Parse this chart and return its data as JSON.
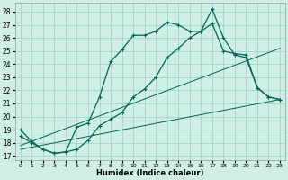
{
  "xlabel": "Humidex (Indice chaleur)",
  "bg_color": "#ceeee6",
  "grid_color": "#a8d4c8",
  "line_color": "#006655",
  "xlim": [
    -0.5,
    23.5
  ],
  "ylim": [
    16.7,
    28.7
  ],
  "yticks": [
    17,
    18,
    19,
    20,
    21,
    22,
    23,
    24,
    25,
    26,
    27,
    28
  ],
  "xticks": [
    0,
    1,
    2,
    3,
    4,
    5,
    6,
    7,
    8,
    9,
    10,
    11,
    12,
    13,
    14,
    15,
    16,
    17,
    18,
    19,
    20,
    21,
    22,
    23
  ],
  "curve1_x": [
    0,
    1,
    2,
    3,
    4,
    5,
    6,
    7,
    8,
    9,
    10,
    11,
    12,
    13,
    14,
    15,
    16,
    17,
    18,
    19,
    20,
    21,
    22,
    23
  ],
  "curve1_y": [
    19.0,
    18.1,
    17.5,
    17.2,
    17.3,
    19.2,
    19.5,
    21.5,
    24.2,
    25.1,
    26.2,
    26.2,
    26.5,
    27.2,
    27.0,
    26.5,
    26.5,
    28.2,
    26.0,
    24.7,
    24.5,
    22.2,
    21.5,
    21.3
  ],
  "curve2_x": [
    0,
    1,
    2,
    3,
    4,
    5,
    6,
    7,
    8,
    9,
    10,
    11,
    12,
    13,
    14,
    15,
    16,
    17,
    18,
    19,
    20,
    21,
    22,
    23
  ],
  "curve2_y": [
    18.5,
    18.0,
    17.5,
    17.2,
    17.3,
    17.5,
    18.2,
    19.3,
    19.8,
    20.3,
    21.5,
    22.1,
    23.0,
    24.5,
    25.2,
    26.0,
    26.5,
    27.1,
    25.0,
    24.8,
    24.7,
    22.2,
    21.5,
    21.3
  ],
  "line1_x": [
    0,
    23
  ],
  "line1_y": [
    17.8,
    25.2
  ],
  "line2_x": [
    0,
    23
  ],
  "line2_y": [
    17.5,
    21.3
  ]
}
